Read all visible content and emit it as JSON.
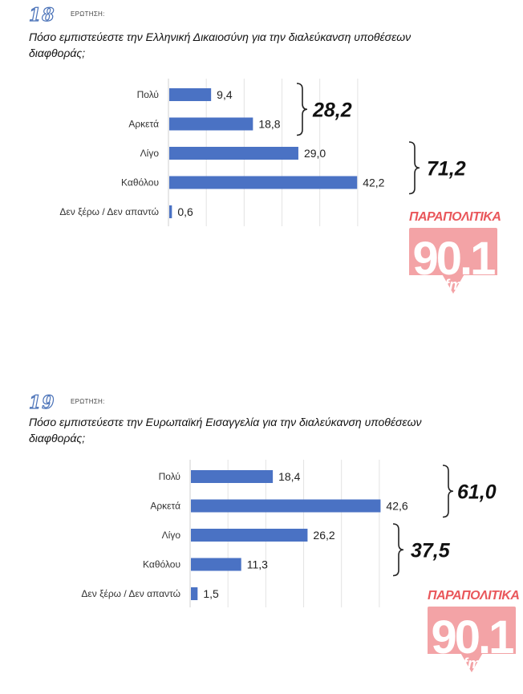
{
  "chart_data": [
    {
      "type": "bar",
      "orientation": "horizontal",
      "question_number": "18",
      "question_label": "ΕΡΩΤΗΣΗ:",
      "title": "Πόσο εμπιστεύεστε την Ελληνική Δικαιοσύνη για την διαλεύκανση υποθέσεων διαφθοράς;",
      "title_lines": [
        "Πόσο εμπιστεύεστε την Ελληνική Δικαιοσύνη για την διαλεύκανση υποθέσεων",
        "διαφθοράς;"
      ],
      "categories": [
        "Πολύ",
        "Αρκετά",
        "Λίγο",
        "Καθόλου",
        "Δεν ξέρω / Δεν απαντώ"
      ],
      "values": [
        9.4,
        18.8,
        29.0,
        42.2,
        0.6
      ],
      "value_labels": [
        "9,4",
        "18,8",
        "29,0",
        "42,2",
        "0,6"
      ],
      "groups": [
        {
          "categories": [
            "Πολύ",
            "Αρκετά"
          ],
          "label": "28,2"
        },
        {
          "categories": [
            "Λίγο",
            "Καθόλου"
          ],
          "label": "71,2"
        }
      ],
      "bar_color": "#4a72c4",
      "grid": true
    },
    {
      "type": "bar",
      "orientation": "horizontal",
      "question_number": "19",
      "question_label": "ΕΡΩΤΗΣΗ:",
      "title": "Πόσο εμπιστεύεστε την Ευρωπαϊκή Εισαγγελία για την διαλεύκανση υποθέσεων διαφθοράς;",
      "title_lines": [
        "Πόσο εμπιστεύεστε την Ευρωπαϊκή Εισαγγελία για την διαλεύκανση υποθέσεων",
        "διαφθοράς;"
      ],
      "categories": [
        "Πολύ",
        "Αρκετά",
        "Λίγο",
        "Καθόλου",
        "Δεν ξέρω / Δεν απαντώ"
      ],
      "values": [
        18.4,
        42.6,
        26.2,
        11.3,
        1.5
      ],
      "value_labels": [
        "18,4",
        "42,6",
        "26,2",
        "11,3",
        "1,5"
      ],
      "groups": [
        {
          "categories": [
            "Πολύ",
            "Αρκετά"
          ],
          "label": "61,0"
        },
        {
          "categories": [
            "Λίγο",
            "Καθόλου"
          ],
          "label": "37,5"
        }
      ],
      "bar_color": "#4a72c4",
      "grid": true
    }
  ],
  "logo": {
    "brand": "ΠΑΡΑΠΟΛΙΤΙΚΑ",
    "frequency": "90.1",
    "unit": "fm",
    "color": "#e9575b"
  }
}
